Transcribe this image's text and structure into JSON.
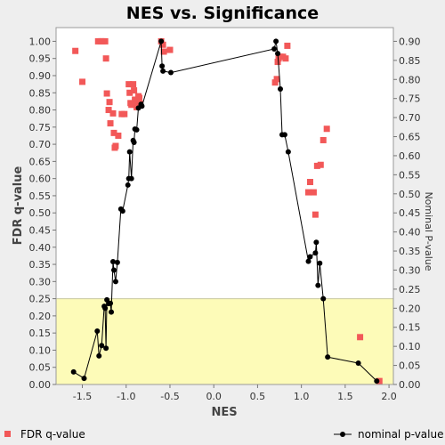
{
  "chart_data": {
    "type": "scatter",
    "title": "NES vs. Significance",
    "xlabel": "NES",
    "ylabel_left": "FDR q-value",
    "ylabel_right": "Nominal P-value",
    "xlim": [
      -1.8,
      2.05
    ],
    "ylim_left": [
      0.0,
      1.04
    ],
    "ylim_right": [
      0.0,
      0.936
    ],
    "x_ticks": [
      -1.5,
      -1.0,
      -0.5,
      0.0,
      0.5,
      1.0,
      1.5,
      2.0
    ],
    "x_tick_labels": [
      "-1.5",
      "-1.0",
      "-0.5",
      "0.0",
      "0.5",
      "1.0",
      "1.5",
      "2.0"
    ],
    "y_left_ticks": [
      0.0,
      0.05,
      0.1,
      0.15,
      0.2,
      0.25,
      0.3,
      0.35,
      0.4,
      0.45,
      0.5,
      0.55,
      0.6,
      0.65,
      0.7,
      0.75,
      0.8,
      0.85,
      0.9,
      0.95,
      1.0
    ],
    "y_left_tick_labels": [
      "0.00",
      "0.05",
      "0.10",
      "0.15",
      "0.20",
      "0.25",
      "0.30",
      "0.35",
      "0.40",
      "0.45",
      "0.50",
      "0.55",
      "0.60",
      "0.65",
      "0.70",
      "0.75",
      "0.80",
      "0.85",
      "0.90",
      "0.95",
      "1.00"
    ],
    "y_right_ticks": [
      0.0,
      0.05,
      0.1,
      0.15,
      0.2,
      0.25,
      0.3,
      0.35,
      0.4,
      0.45,
      0.5,
      0.55,
      0.6,
      0.65,
      0.7,
      0.75,
      0.8,
      0.85,
      0.9
    ],
    "y_right_tick_labels": [
      "0.00",
      "0.05",
      "0.10",
      "0.15",
      "0.20",
      "0.25",
      "0.30",
      "0.35",
      "0.40",
      "0.45",
      "0.50",
      "0.55",
      "0.60",
      "0.65",
      "0.70",
      "0.75",
      "0.80",
      "0.85",
      "0.90"
    ],
    "highlight_band_left": [
      0.0,
      0.25
    ],
    "colors": {
      "fdr": "#f25858",
      "nominal": "#000000",
      "band": "#fdfbb8",
      "plot_bg": "#ffffff",
      "grid": "#cccccc"
    },
    "series": [
      {
        "name": "FDR q-value",
        "axis": "left",
        "style": "square",
        "points": [
          [
            -1.58,
            0.972
          ],
          [
            -1.5,
            0.882
          ],
          [
            -1.32,
            1.0
          ],
          [
            -1.29,
            1.0
          ],
          [
            -1.27,
            1.0
          ],
          [
            -1.24,
            1.0
          ],
          [
            -1.23,
            0.95
          ],
          [
            -1.22,
            0.848
          ],
          [
            -1.2,
            0.8
          ],
          [
            -1.19,
            0.823
          ],
          [
            -1.18,
            0.761
          ],
          [
            -1.15,
            0.79
          ],
          [
            -1.14,
            0.733
          ],
          [
            -1.13,
            0.69
          ],
          [
            -1.12,
            0.695
          ],
          [
            -1.09,
            0.725
          ],
          [
            -1.05,
            0.788
          ],
          [
            -1.02,
            0.788
          ],
          [
            -0.97,
            0.875
          ],
          [
            -0.96,
            0.85
          ],
          [
            -0.95,
            0.82
          ],
          [
            -0.94,
            0.815
          ],
          [
            -0.92,
            0.875
          ],
          [
            -0.91,
            0.857
          ],
          [
            -0.9,
            0.83
          ],
          [
            -0.89,
            0.815
          ],
          [
            -0.88,
            0.808
          ],
          [
            -0.86,
            0.84
          ],
          [
            -0.85,
            0.835
          ],
          [
            -0.84,
            0.818
          ],
          [
            -0.6,
            1.0
          ],
          [
            -0.58,
            0.99
          ],
          [
            -0.57,
            0.97
          ],
          [
            -0.5,
            0.975
          ],
          [
            0.7,
            0.88
          ],
          [
            0.72,
            0.89
          ],
          [
            0.73,
            0.94
          ],
          [
            0.74,
            0.95
          ],
          [
            0.76,
            0.955
          ],
          [
            0.79,
            0.955
          ],
          [
            0.82,
            0.95
          ],
          [
            0.84,
            0.987
          ],
          [
            1.08,
            0.56
          ],
          [
            1.1,
            0.59
          ],
          [
            1.14,
            0.56
          ],
          [
            1.16,
            0.495
          ],
          [
            1.18,
            0.637
          ],
          [
            1.22,
            0.64
          ],
          [
            1.25,
            0.712
          ],
          [
            1.29,
            0.745
          ],
          [
            1.67,
            0.138
          ],
          [
            1.89,
            0.01
          ]
        ]
      },
      {
        "name": "nominal p-value",
        "axis": "right",
        "style": "line-dot",
        "points": [
          [
            -1.6,
            0.033
          ],
          [
            -1.48,
            0.016
          ],
          [
            -1.33,
            0.14
          ],
          [
            -1.31,
            0.075
          ],
          [
            -1.28,
            0.102
          ],
          [
            -1.25,
            0.205
          ],
          [
            -1.24,
            0.2
          ],
          [
            -1.23,
            0.095
          ],
          [
            -1.22,
            0.222
          ],
          [
            -1.2,
            0.212
          ],
          [
            -1.18,
            0.213
          ],
          [
            -1.17,
            0.19
          ],
          [
            -1.15,
            0.322
          ],
          [
            -1.14,
            0.3
          ],
          [
            -1.12,
            0.27
          ],
          [
            -1.1,
            0.32
          ],
          [
            -1.06,
            0.46
          ],
          [
            -1.04,
            0.455
          ],
          [
            -0.98,
            0.523
          ],
          [
            -0.97,
            0.54
          ],
          [
            -0.96,
            0.61
          ],
          [
            -0.94,
            0.54
          ],
          [
            -0.92,
            0.64
          ],
          [
            -0.91,
            0.635
          ],
          [
            -0.9,
            0.67
          ],
          [
            -0.88,
            0.668
          ],
          [
            -0.86,
            0.725
          ],
          [
            -0.83,
            0.735
          ],
          [
            -0.82,
            0.73
          ],
          [
            -0.6,
            0.9
          ],
          [
            -0.59,
            0.835
          ],
          [
            -0.58,
            0.822
          ],
          [
            -0.49,
            0.818
          ],
          [
            0.69,
            0.88
          ],
          [
            0.71,
            0.9
          ],
          [
            0.73,
            0.868
          ],
          [
            0.76,
            0.775
          ],
          [
            0.78,
            0.655
          ],
          [
            0.81,
            0.655
          ],
          [
            0.85,
            0.61
          ],
          [
            1.08,
            0.323
          ],
          [
            1.1,
            0.335
          ],
          [
            1.16,
            0.345
          ],
          [
            1.17,
            0.373
          ],
          [
            1.19,
            0.26
          ],
          [
            1.21,
            0.318
          ],
          [
            1.25,
            0.225
          ],
          [
            1.3,
            0.072
          ],
          [
            1.65,
            0.056
          ],
          [
            1.86,
            0.009
          ]
        ]
      }
    ],
    "legend": [
      {
        "label": "FDR q-value",
        "style": "square"
      },
      {
        "label": "nominal p-value",
        "style": "line-dot"
      }
    ],
    "legend_placement": "bottom"
  }
}
